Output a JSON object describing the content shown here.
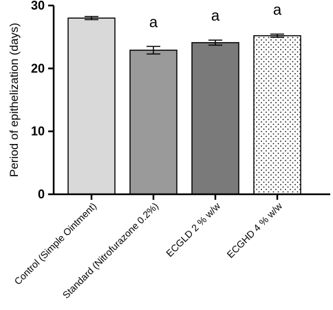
{
  "chart_data": {
    "type": "bar",
    "title": "",
    "xlabel": "",
    "ylabel": "Period of epithelization (days)",
    "ylim": [
      0,
      30
    ],
    "yticks": [
      0,
      10,
      20,
      30
    ],
    "grid": false,
    "categories": [
      "Control (Simple Ointment)",
      "Standard (Nitrofurazone 0.2%)",
      "ECGLD 2 % w/w",
      "ECGHD 4 % w/w"
    ],
    "values": [
      28.0,
      22.9,
      24.1,
      25.2
    ],
    "errors": [
      0.25,
      0.6,
      0.4,
      0.25
    ],
    "annotations": [
      "",
      "a",
      "a",
      "a"
    ],
    "bar_colors": [
      "#d9d9d9",
      "#9a9a9a",
      "#7a7a7a",
      "#ffffff"
    ],
    "bar_patterns": [
      "solid",
      "solid",
      "solid",
      "dots"
    ]
  }
}
